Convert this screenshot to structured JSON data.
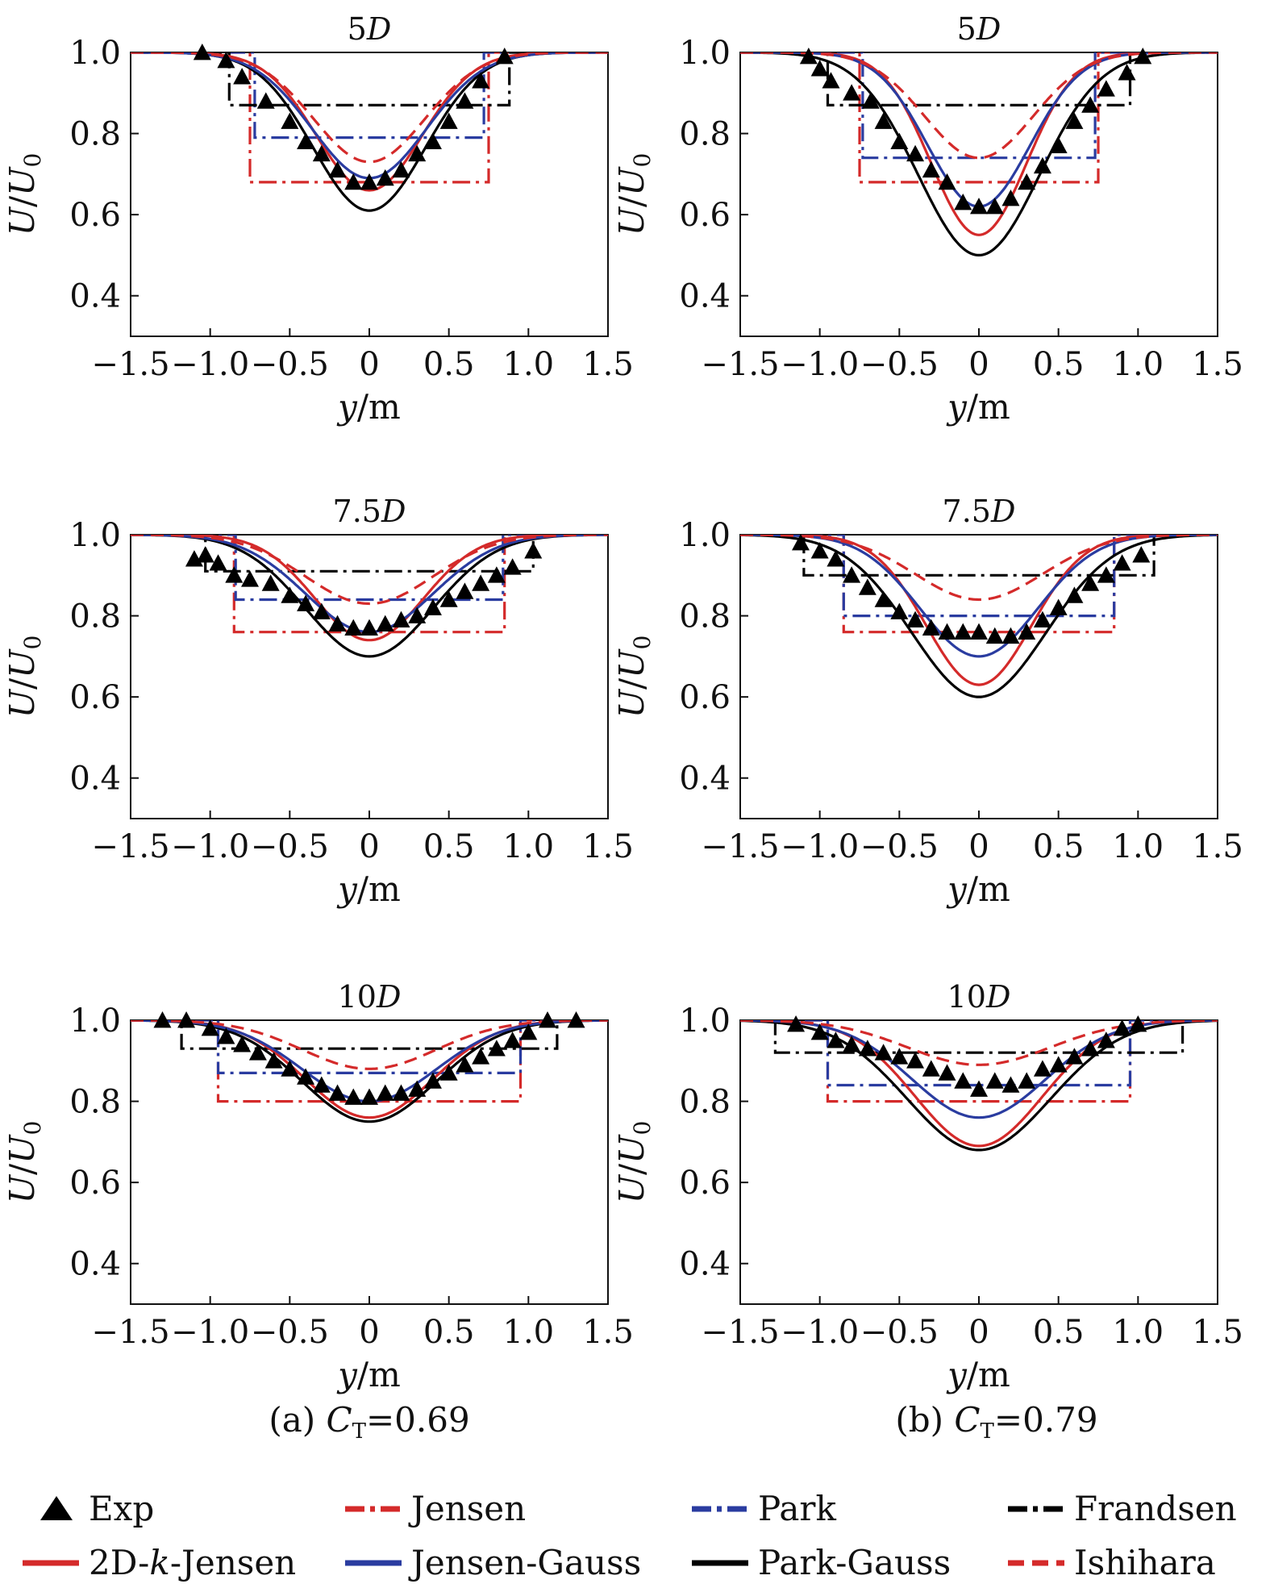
{
  "chart_data": [
    {
      "type": "line",
      "title": "5D",
      "xlabel": "y/m",
      "ylabel": "U/U0",
      "xlim": [
        -1.5,
        1.5
      ],
      "ylim": [
        0.3,
        1.0
      ],
      "xticks": [
        "−1.5",
        "−1.0",
        "−0.5",
        "0",
        "0.5",
        "1.0",
        "1.5"
      ],
      "yticks": [
        "0.4",
        "0.6",
        "0.8",
        "1.0"
      ],
      "models": {
        "Jensen": {
          "half_width": 0.75,
          "deficit": 0.32
        },
        "Park": {
          "half_width": 0.72,
          "deficit": 0.21
        },
        "Frandsen": {
          "half_width": 0.88,
          "deficit": 0.13
        },
        "2D-k-Jensen": {
          "sigma": 0.33,
          "deficit": 0.34
        },
        "Jensen-Gauss": {
          "sigma": 0.36,
          "deficit": 0.31
        },
        "Park-Gauss": {
          "sigma": 0.35,
          "deficit": 0.39
        },
        "Ishihara": {
          "sigma": 0.35,
          "deficit": 0.27
        }
      },
      "exp": {
        "x": [
          -1.05,
          -0.9,
          -0.8,
          -0.65,
          -0.5,
          -0.4,
          -0.3,
          -0.2,
          -0.1,
          0,
          0.1,
          0.2,
          0.3,
          0.4,
          0.5,
          0.6,
          0.7,
          0.85
        ],
        "y": [
          1.0,
          0.98,
          0.94,
          0.88,
          0.83,
          0.78,
          0.75,
          0.71,
          0.68,
          0.68,
          0.69,
          0.71,
          0.75,
          0.78,
          0.83,
          0.88,
          0.93,
          0.99
        ]
      }
    },
    {
      "type": "line",
      "title": "5D",
      "xlabel": "y/m",
      "ylabel": "U/U0",
      "xlim": [
        -1.5,
        1.5
      ],
      "ylim": [
        0.3,
        1.0
      ],
      "xticks": [
        "−1.5",
        "−1.0",
        "−0.5",
        "0",
        "0.5",
        "1.0",
        "1.5"
      ],
      "yticks": [
        "0.4",
        "0.6",
        "0.8",
        "1.0"
      ],
      "models": {
        "Jensen": {
          "half_width": 0.75,
          "deficit": 0.32
        },
        "Park": {
          "half_width": 0.73,
          "deficit": 0.26
        },
        "Frandsen": {
          "half_width": 0.95,
          "deficit": 0.13
        },
        "2D-k-Jensen": {
          "sigma": 0.3,
          "deficit": 0.45
        },
        "Jensen-Gauss": {
          "sigma": 0.32,
          "deficit": 0.38
        },
        "Park-Gauss": {
          "sigma": 0.38,
          "deficit": 0.5
        },
        "Ishihara": {
          "sigma": 0.34,
          "deficit": 0.26
        }
      },
      "exp": {
        "x": [
          -1.07,
          -1.0,
          -0.93,
          -0.8,
          -0.68,
          -0.6,
          -0.5,
          -0.4,
          -0.3,
          -0.2,
          -0.1,
          0,
          0.1,
          0.2,
          0.3,
          0.4,
          0.5,
          0.6,
          0.7,
          0.8,
          0.93,
          1.03
        ],
        "y": [
          0.99,
          0.96,
          0.93,
          0.9,
          0.88,
          0.83,
          0.78,
          0.75,
          0.71,
          0.68,
          0.63,
          0.62,
          0.62,
          0.64,
          0.68,
          0.72,
          0.77,
          0.83,
          0.87,
          0.91,
          0.95,
          0.99
        ]
      }
    },
    {
      "type": "line",
      "title": "7.5D",
      "xlabel": "y/m",
      "ylabel": "U/U0",
      "xlim": [
        -1.5,
        1.5
      ],
      "ylim": [
        0.3,
        1.0
      ],
      "xticks": [
        "−1.5",
        "−1.0",
        "−0.5",
        "0",
        "0.5",
        "1.0",
        "1.5"
      ],
      "yticks": [
        "0.4",
        "0.6",
        "0.8",
        "1.0"
      ],
      "models": {
        "Jensen": {
          "half_width": 0.85,
          "deficit": 0.24
        },
        "Park": {
          "half_width": 0.84,
          "deficit": 0.16
        },
        "Frandsen": {
          "half_width": 1.03,
          "deficit": 0.09
        },
        "2D-k-Jensen": {
          "sigma": 0.34,
          "deficit": 0.26
        },
        "Jensen-Gauss": {
          "sigma": 0.4,
          "deficit": 0.24
        },
        "Park-Gauss": {
          "sigma": 0.4,
          "deficit": 0.3
        },
        "Ishihara": {
          "sigma": 0.4,
          "deficit": 0.17
        }
      },
      "exp": {
        "x": [
          -1.1,
          -1.03,
          -0.95,
          -0.85,
          -0.75,
          -0.62,
          -0.5,
          -0.4,
          -0.3,
          -0.2,
          -0.1,
          0,
          0.1,
          0.2,
          0.3,
          0.4,
          0.5,
          0.6,
          0.7,
          0.8,
          0.9,
          1.03
        ],
        "y": [
          0.94,
          0.95,
          0.93,
          0.9,
          0.89,
          0.88,
          0.85,
          0.83,
          0.81,
          0.78,
          0.77,
          0.77,
          0.78,
          0.79,
          0.8,
          0.82,
          0.84,
          0.86,
          0.88,
          0.9,
          0.92,
          0.96
        ]
      }
    },
    {
      "type": "line",
      "title": "7.5D",
      "xlabel": "y/m",
      "ylabel": "U/U0",
      "xlim": [
        -1.5,
        1.5
      ],
      "ylim": [
        0.3,
        1.0
      ],
      "xticks": [
        "−1.5",
        "−1.0",
        "−0.5",
        "0",
        "0.5",
        "1.0",
        "1.5"
      ],
      "yticks": [
        "0.4",
        "0.6",
        "0.8",
        "1.0"
      ],
      "models": {
        "Jensen": {
          "half_width": 0.85,
          "deficit": 0.24
        },
        "Park": {
          "half_width": 0.85,
          "deficit": 0.2
        },
        "Frandsen": {
          "half_width": 1.1,
          "deficit": 0.1
        },
        "2D-k-Jensen": {
          "sigma": 0.33,
          "deficit": 0.37
        },
        "Jensen-Gauss": {
          "sigma": 0.37,
          "deficit": 0.3
        },
        "Park-Gauss": {
          "sigma": 0.42,
          "deficit": 0.4
        },
        "Ishihara": {
          "sigma": 0.4,
          "deficit": 0.16
        }
      },
      "exp": {
        "x": [
          -1.12,
          -1.0,
          -0.9,
          -0.8,
          -0.7,
          -0.6,
          -0.5,
          -0.4,
          -0.3,
          -0.2,
          -0.1,
          0,
          0.1,
          0.2,
          0.3,
          0.4,
          0.5,
          0.6,
          0.7,
          0.8,
          0.9,
          1.02
        ],
        "y": [
          0.98,
          0.96,
          0.94,
          0.9,
          0.87,
          0.84,
          0.81,
          0.79,
          0.77,
          0.76,
          0.76,
          0.76,
          0.75,
          0.75,
          0.76,
          0.79,
          0.82,
          0.85,
          0.88,
          0.9,
          0.93,
          0.95
        ]
      }
    },
    {
      "type": "line",
      "title": "10D",
      "xlabel": "y/m",
      "ylabel": "U/U0",
      "xlim": [
        -1.5,
        1.5
      ],
      "ylim": [
        0.3,
        1.0
      ],
      "xticks": [
        "−1.5",
        "−1.0",
        "−0.5",
        "0",
        "0.5",
        "1.0",
        "1.5"
      ],
      "yticks": [
        "0.4",
        "0.6",
        "0.8",
        "1.0"
      ],
      "models": {
        "Jensen": {
          "half_width": 0.95,
          "deficit": 0.2
        },
        "Park": {
          "half_width": 0.95,
          "deficit": 0.13
        },
        "Frandsen": {
          "half_width": 1.18,
          "deficit": 0.07
        },
        "2D-k-Jensen": {
          "sigma": 0.4,
          "deficit": 0.24
        },
        "Jensen-Gauss": {
          "sigma": 0.42,
          "deficit": 0.2
        },
        "Park-Gauss": {
          "sigma": 0.42,
          "deficit": 0.25
        },
        "Ishihara": {
          "sigma": 0.42,
          "deficit": 0.12
        }
      },
      "exp": {
        "x": [
          -1.3,
          -1.15,
          -1.0,
          -0.9,
          -0.8,
          -0.7,
          -0.6,
          -0.5,
          -0.4,
          -0.3,
          -0.2,
          -0.1,
          0,
          0.1,
          0.2,
          0.3,
          0.4,
          0.5,
          0.6,
          0.7,
          0.8,
          0.9,
          1.0,
          1.12,
          1.3
        ],
        "y": [
          1.0,
          1.0,
          0.98,
          0.96,
          0.94,
          0.92,
          0.9,
          0.88,
          0.86,
          0.84,
          0.82,
          0.81,
          0.81,
          0.82,
          0.82,
          0.83,
          0.85,
          0.87,
          0.89,
          0.91,
          0.93,
          0.95,
          0.97,
          1.0,
          1.0
        ]
      }
    },
    {
      "type": "line",
      "title": "10D",
      "xlabel": "y/m",
      "ylabel": "U/U0",
      "xlim": [
        -1.5,
        1.5
      ],
      "ylim": [
        0.3,
        1.0
      ],
      "xticks": [
        "−1.5",
        "−1.0",
        "−0.5",
        "0",
        "0.5",
        "1.0",
        "1.5"
      ],
      "yticks": [
        "0.4",
        "0.6",
        "0.8",
        "1.0"
      ],
      "models": {
        "Jensen": {
          "half_width": 0.95,
          "deficit": 0.2
        },
        "Park": {
          "half_width": 0.95,
          "deficit": 0.16
        },
        "Frandsen": {
          "half_width": 1.28,
          "deficit": 0.08
        },
        "2D-k-Jensen": {
          "sigma": 0.4,
          "deficit": 0.31
        },
        "Jensen-Gauss": {
          "sigma": 0.42,
          "deficit": 0.24
        },
        "Park-Gauss": {
          "sigma": 0.45,
          "deficit": 0.32
        },
        "Ishihara": {
          "sigma": 0.45,
          "deficit": 0.11
        }
      },
      "exp": {
        "x": [
          -1.15,
          -1.0,
          -0.9,
          -0.8,
          -0.7,
          -0.6,
          -0.5,
          -0.4,
          -0.3,
          -0.2,
          -0.1,
          0,
          0.1,
          0.2,
          0.3,
          0.4,
          0.5,
          0.6,
          0.7,
          0.8,
          0.9,
          1.0
        ],
        "y": [
          0.99,
          0.97,
          0.95,
          0.94,
          0.93,
          0.92,
          0.91,
          0.9,
          0.88,
          0.87,
          0.85,
          0.83,
          0.85,
          0.84,
          0.85,
          0.88,
          0.89,
          0.91,
          0.93,
          0.95,
          0.98,
          0.99
        ]
      }
    }
  ],
  "captions": {
    "a": {
      "prefix": "(a) ",
      "var": "C",
      "sub": "T",
      "suffix": "=0.69"
    },
    "b": {
      "prefix": "(b) ",
      "var": "C",
      "sub": "T",
      "suffix": "=0.79"
    }
  },
  "legend": [
    {
      "name": "Exp",
      "color": "#000000",
      "style": "marker"
    },
    {
      "name": "Jensen",
      "color": "#d42a2a",
      "style": "dashdot"
    },
    {
      "name": "Park",
      "color": "#2a3ca0",
      "style": "dashdot"
    },
    {
      "name": "Frandsen",
      "color": "#000000",
      "style": "dashdot"
    },
    {
      "name": "2D-k-Jensen",
      "color": "#d42a2a",
      "style": "solid"
    },
    {
      "name": "Jensen-Gauss",
      "color": "#2a3ca0",
      "style": "solid"
    },
    {
      "name": "Park-Gauss",
      "color": "#000000",
      "style": "solid"
    },
    {
      "name": "Ishihara",
      "color": "#d42a2a",
      "style": "dashed"
    }
  ]
}
